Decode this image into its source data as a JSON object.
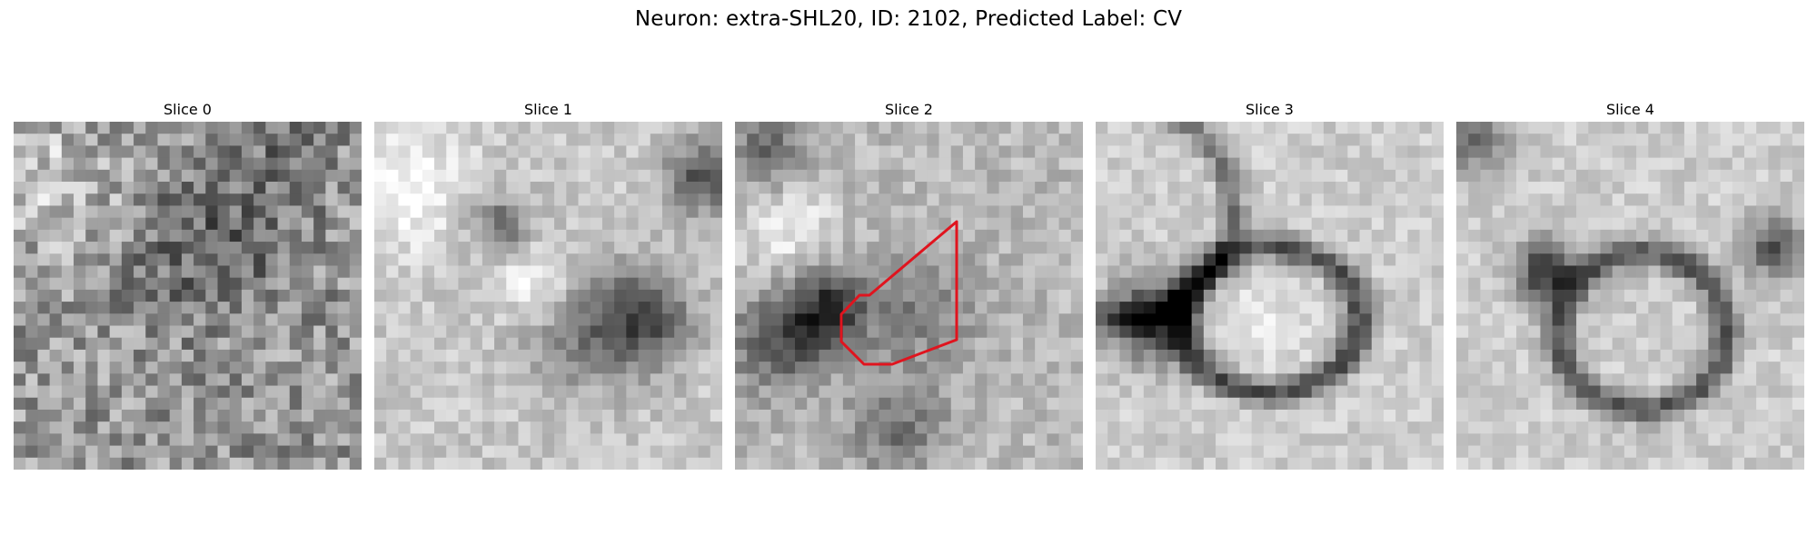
{
  "figure": {
    "title": "Neuron: extra-SHL20, ID: 2102, Predicted Label: CV"
  },
  "panels": [
    {
      "title": "Slice 0",
      "contour_color": ""
    },
    {
      "title": "Slice 1",
      "contour_color": ""
    },
    {
      "title": "Slice 2",
      "contour_color": "#e0141e"
    },
    {
      "title": "Slice 3",
      "contour_color": ""
    },
    {
      "title": "Slice 4",
      "contour_color": ""
    }
  ],
  "colors": {
    "annotation": "#e0141e"
  }
}
